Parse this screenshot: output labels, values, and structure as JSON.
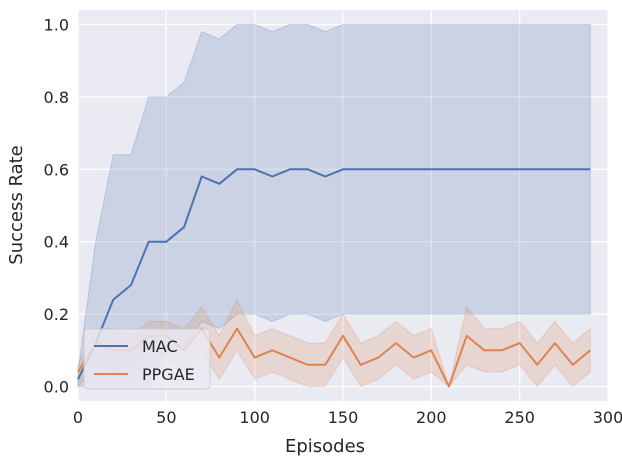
{
  "chart_data": {
    "type": "line",
    "xlabel": "Episodes",
    "ylabel": "Success Rate",
    "xlim": [
      0,
      300
    ],
    "ylim": [
      -0.04,
      1.04
    ],
    "x_ticks": [
      "0",
      "50",
      "100",
      "150",
      "200",
      "250",
      "300"
    ],
    "y_ticks": [
      "0.0",
      "0.2",
      "0.4",
      "0.6",
      "0.8",
      "1.0"
    ],
    "grid": true,
    "legend_position": "lower-left",
    "background_color": "#eaeaf2",
    "series": [
      {
        "name": "MAC",
        "color": "#4c72b0",
        "x": [
          0,
          10,
          20,
          30,
          40,
          50,
          60,
          70,
          80,
          90,
          100,
          110,
          120,
          130,
          140,
          150,
          160,
          170,
          180,
          190,
          200,
          210,
          220,
          230,
          240,
          250,
          260,
          270,
          280,
          290
        ],
        "y": [
          0.02,
          0.12,
          0.24,
          0.28,
          0.4,
          0.4,
          0.44,
          0.58,
          0.56,
          0.6,
          0.6,
          0.58,
          0.6,
          0.6,
          0.58,
          0.6,
          0.6,
          0.6,
          0.6,
          0.6,
          0.6,
          0.6,
          0.6,
          0.6,
          0.6,
          0.6,
          0.6,
          0.6,
          0.6,
          0.6
        ],
        "upper": [
          0.04,
          0.4,
          0.64,
          0.64,
          0.8,
          0.8,
          0.84,
          0.98,
          0.96,
          1.0,
          1.0,
          0.98,
          1.0,
          1.0,
          0.98,
          1.0,
          1.0,
          1.0,
          1.0,
          1.0,
          1.0,
          1.0,
          1.0,
          1.0,
          1.0,
          1.0,
          1.0,
          1.0,
          1.0,
          1.0
        ],
        "lower": [
          0.0,
          0.0,
          0.0,
          0.0,
          0.0,
          0.1,
          0.1,
          0.18,
          0.16,
          0.2,
          0.2,
          0.18,
          0.2,
          0.2,
          0.18,
          0.2,
          0.2,
          0.2,
          0.2,
          0.2,
          0.2,
          0.2,
          0.2,
          0.2,
          0.2,
          0.2,
          0.2,
          0.2,
          0.2,
          0.2
        ]
      },
      {
        "name": "PPGAE",
        "color": "#dd8452",
        "x": [
          0,
          10,
          20,
          30,
          40,
          50,
          60,
          70,
          80,
          90,
          100,
          110,
          120,
          130,
          140,
          150,
          160,
          170,
          180,
          190,
          200,
          210,
          220,
          230,
          240,
          250,
          260,
          270,
          280,
          290
        ],
        "y": [
          0.04,
          0.12,
          0.1,
          0.1,
          0.14,
          0.14,
          0.1,
          0.16,
          0.08,
          0.16,
          0.08,
          0.1,
          0.08,
          0.06,
          0.06,
          0.14,
          0.06,
          0.08,
          0.12,
          0.08,
          0.1,
          0.0,
          0.14,
          0.1,
          0.1,
          0.12,
          0.06,
          0.12,
          0.06,
          0.1
        ],
        "upper": [
          0.06,
          0.16,
          0.16,
          0.14,
          0.18,
          0.18,
          0.16,
          0.22,
          0.14,
          0.24,
          0.14,
          0.16,
          0.14,
          0.12,
          0.12,
          0.2,
          0.12,
          0.14,
          0.18,
          0.14,
          0.16,
          0.0,
          0.22,
          0.16,
          0.16,
          0.18,
          0.12,
          0.18,
          0.12,
          0.16
        ],
        "lower": [
          0.0,
          0.06,
          0.04,
          0.06,
          0.1,
          0.08,
          0.04,
          0.1,
          0.02,
          0.1,
          0.02,
          0.04,
          0.02,
          0.0,
          0.0,
          0.08,
          0.0,
          0.02,
          0.06,
          0.02,
          0.04,
          0.0,
          0.06,
          0.04,
          0.04,
          0.06,
          0.0,
          0.06,
          0.0,
          0.04
        ]
      }
    ]
  }
}
